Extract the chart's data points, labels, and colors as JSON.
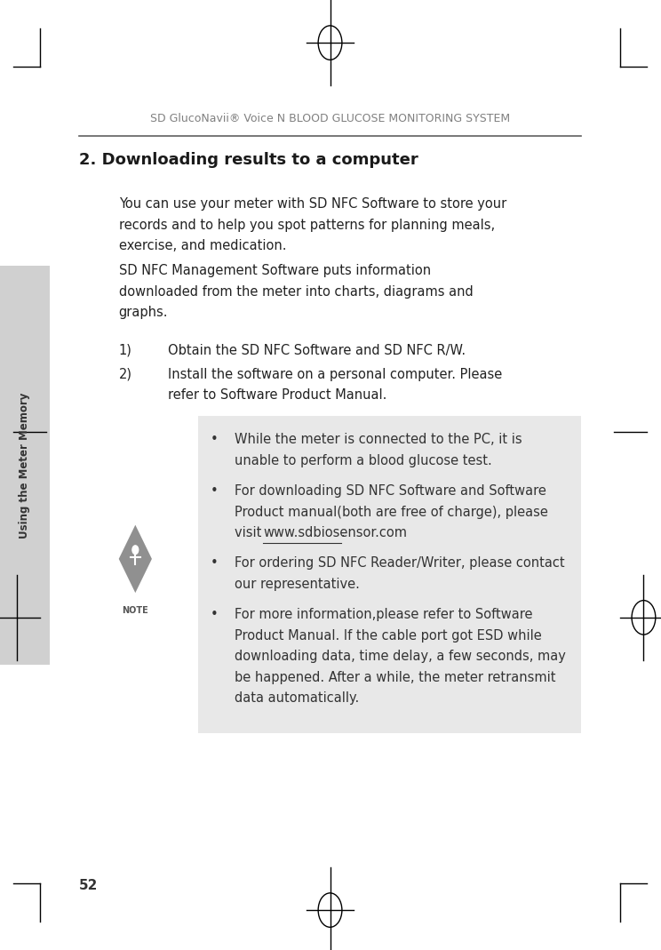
{
  "bg_color": "#ffffff",
  "header_text": "SD GlucoNavii® Voice N BLOOD GLUCOSE MONITORING SYSTEM",
  "header_color": "#808080",
  "header_line_color": "#606060",
  "section_title": "2. Downloading results to a computer",
  "section_title_size": 13,
  "body_text_color": "#222222",
  "note_box_color": "#e8e8e8",
  "sidebar_color": "#d0d0d0",
  "sidebar_text": "Using the Meter Memory",
  "page_number": "52",
  "body_lines": [
    "You can use your meter with SD NFC Software to store your",
    "records and to help you spot patterns for planning meals,",
    "exercise, and medication.",
    "SD NFC Management Software puts information",
    "downloaded from the meter into charts, diagrams and",
    "graphs."
  ],
  "font_size_body": 10.5
}
